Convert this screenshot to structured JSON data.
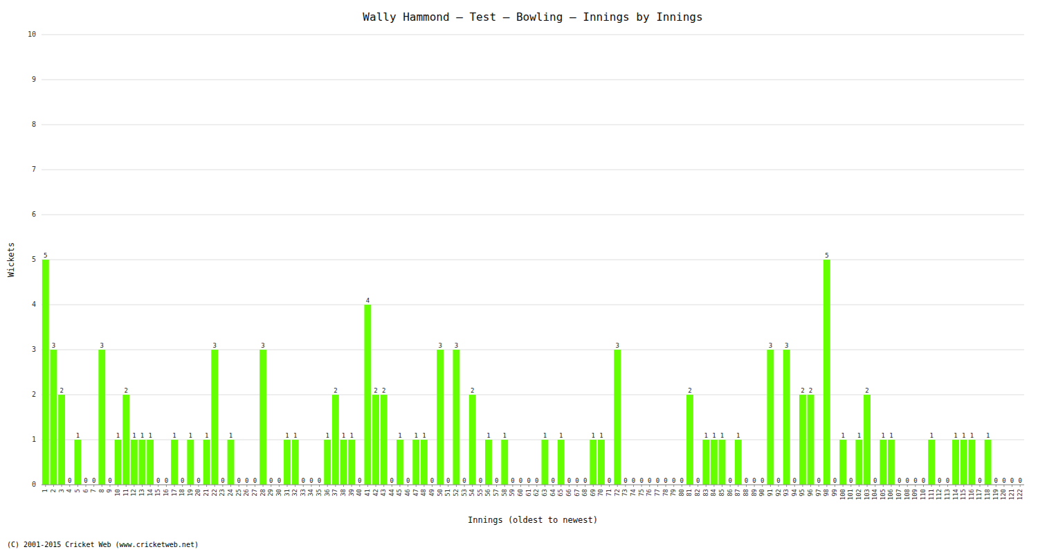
{
  "chart_data": {
    "type": "bar",
    "title": "Wally Hammond – Test – Bowling – Innings by Innings",
    "xlabel": "Innings (oldest to newest)",
    "ylabel": "Wickets",
    "categories": [
      "1",
      "2",
      "3",
      "4",
      "5",
      "6",
      "7",
      "8",
      "9",
      "10",
      "11",
      "12",
      "13",
      "14",
      "15",
      "16",
      "17",
      "18",
      "19",
      "20",
      "21",
      "22",
      "23",
      "24",
      "25",
      "26",
      "27",
      "28",
      "29",
      "30",
      "31",
      "32",
      "33",
      "34",
      "35",
      "36",
      "37",
      "38",
      "39",
      "40",
      "41",
      "42",
      "43",
      "44",
      "45",
      "46",
      "47",
      "48",
      "49",
      "50",
      "51",
      "52",
      "53",
      "54",
      "55",
      "56",
      "57",
      "58",
      "59",
      "60",
      "61",
      "62",
      "63",
      "64",
      "65",
      "66",
      "67",
      "68",
      "69",
      "70",
      "71",
      "72",
      "73",
      "74",
      "75",
      "76",
      "77",
      "78",
      "79",
      "80",
      "81",
      "82",
      "83",
      "84",
      "85",
      "86",
      "87",
      "88",
      "89",
      "90",
      "91",
      "92",
      "93",
      "94",
      "95",
      "96",
      "97",
      "98",
      "99",
      "100",
      "101",
      "102",
      "103",
      "104",
      "105",
      "106",
      "107",
      "108",
      "109",
      "110",
      "111",
      "112",
      "113",
      "114",
      "115",
      "116",
      "117",
      "118",
      "119",
      "120",
      "121",
      "122"
    ],
    "values": [
      5,
      3,
      2,
      0,
      1,
      0,
      0,
      3,
      0,
      1,
      2,
      1,
      1,
      1,
      0,
      0,
      1,
      0,
      1,
      0,
      1,
      3,
      0,
      1,
      0,
      0,
      0,
      3,
      0,
      0,
      1,
      1,
      0,
      0,
      0,
      1,
      2,
      1,
      1,
      0,
      4,
      2,
      2,
      0,
      1,
      0,
      1,
      1,
      0,
      3,
      0,
      3,
      0,
      2,
      0,
      1,
      0,
      1,
      0,
      0,
      0,
      0,
      1,
      0,
      1,
      0,
      0,
      0,
      1,
      1,
      0,
      3,
      0,
      0,
      0,
      0,
      0,
      0,
      0,
      0,
      2,
      0,
      1,
      1,
      1,
      0,
      1,
      0,
      0,
      0,
      3,
      0,
      3,
      0,
      2,
      2,
      0,
      5,
      0,
      1,
      0,
      1,
      2,
      0,
      1,
      1,
      0,
      0,
      0,
      0,
      1,
      0,
      0,
      1,
      1,
      1,
      0,
      1,
      0,
      0,
      0,
      0
    ],
    "color": "#66ff00",
    "ylim": [
      0,
      10
    ],
    "yticks": [
      0,
      1,
      2,
      3,
      4,
      5,
      6,
      7,
      8,
      9,
      10
    ],
    "grid": true,
    "data_labels": true,
    "annotations": [
      "(C) 2001-2015 Cricket Web (www.cricketweb.net)"
    ]
  }
}
